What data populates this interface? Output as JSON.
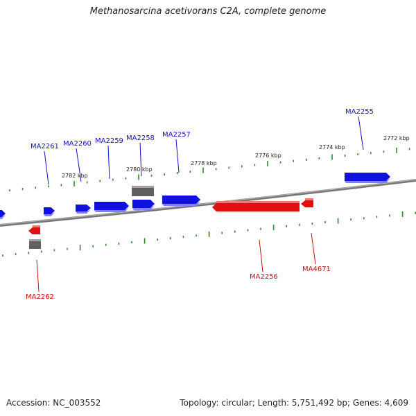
{
  "title": "Methanosarcina acetivorans C2A, complete genome",
  "footer": {
    "accession_text": "Accession: NC_003552",
    "stats_text": "Topology: circular; Length: 5,751,492 bp; Genes: 4,609"
  },
  "colors": {
    "forward_gene": "#1010e0",
    "reverse_gene": "#e01010",
    "other_feature": "#606060",
    "backbone": "#777777",
    "ticks": "#2a8a2a",
    "forward_label": "#1010c0",
    "reverse_label": "#c01010"
  },
  "tick_labels": [
    {
      "text": "2782 kbp",
      "pos": 2782
    },
    {
      "text": "2780 kbp",
      "pos": 2780
    },
    {
      "text": "2778 kbp",
      "pos": 2778
    },
    {
      "text": "2776 kbp",
      "pos": 2776
    },
    {
      "text": "2774 kbp",
      "pos": 2774
    },
    {
      "text": "2772 kbp",
      "pos": 2772
    }
  ],
  "genes": [
    {
      "name": "MA2261",
      "strand": "+"
    },
    {
      "name": "MA2260",
      "strand": "+"
    },
    {
      "name": "MA2259",
      "strand": "+"
    },
    {
      "name": "MA2258",
      "strand": "+"
    },
    {
      "name": "MA2257",
      "strand": "+"
    },
    {
      "name": "MA2255",
      "strand": "+"
    },
    {
      "name": "MA2262",
      "strand": "-"
    },
    {
      "name": "MA2256",
      "strand": "-"
    },
    {
      "name": "MA4671",
      "strand": "-"
    }
  ]
}
